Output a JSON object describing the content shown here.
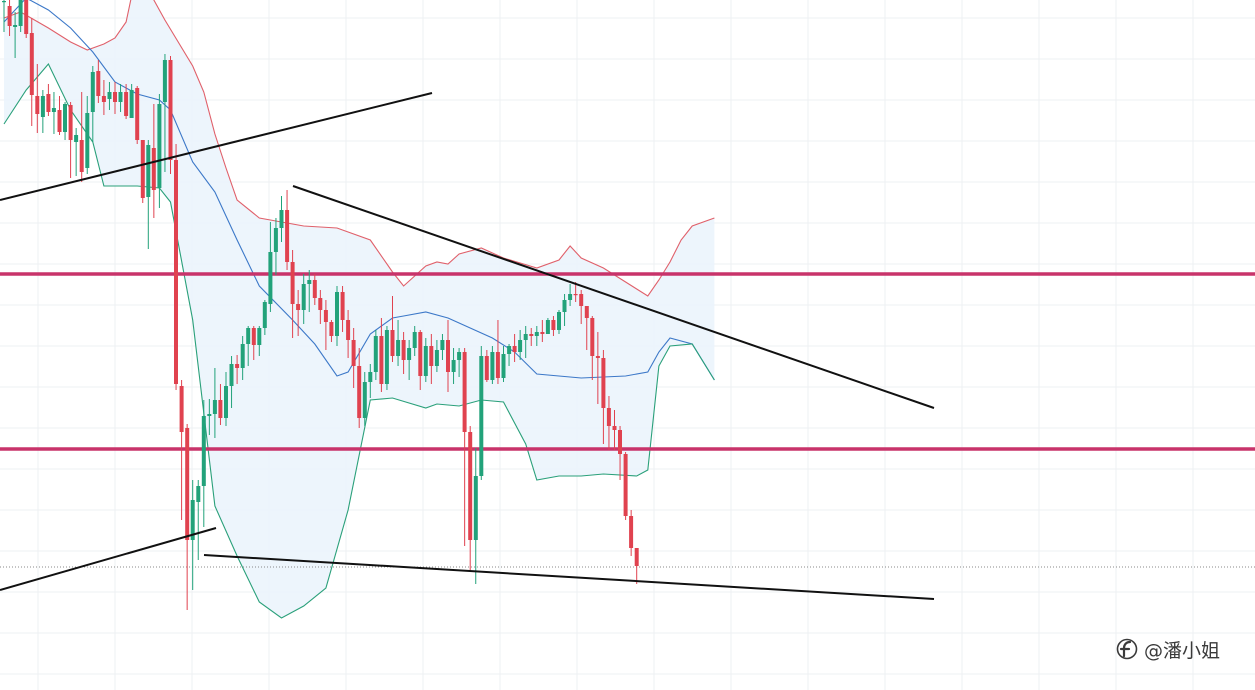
{
  "watermark": {
    "text": "@潘小姐"
  },
  "colors": {
    "background": "#ffffff",
    "grid": "#eef0f3",
    "bull": "#22a27a",
    "bear": "#e0424f",
    "band_fill": "#eaf3fb",
    "band_upper": "#e0606a",
    "band_middle": "#3c78c8",
    "band_lower": "#2aa07a",
    "level": "#c8336a",
    "trendline": "#111111",
    "current_price_line": "#888888"
  },
  "chart_data": {
    "type": "candlestick",
    "title": "",
    "xlabel": "",
    "ylabel": "",
    "grid": true,
    "ylim": [
      0,
      690
    ],
    "xlim": [
      0,
      160
    ],
    "indicators": [
      "bollinger-bands"
    ],
    "candles": [
      [
        0,
        2,
        -5,
        32,
        1
      ],
      [
        1,
        6,
        0,
        36,
        26
      ],
      [
        2,
        27,
        12,
        58,
        25
      ],
      [
        3,
        26,
        -10,
        32,
        -8
      ],
      [
        4,
        -4,
        -22,
        38,
        34
      ],
      [
        5,
        33,
        18,
        126,
        95
      ],
      [
        6,
        96,
        64,
        133,
        114
      ],
      [
        7,
        117,
        90,
        133,
        96
      ],
      [
        8,
        94,
        84,
        116,
        112
      ],
      [
        9,
        112,
        92,
        134,
        108
      ],
      [
        10,
        110,
        96,
        135,
        132
      ],
      [
        11,
        132,
        102,
        140,
        104
      ],
      [
        12,
        105,
        102,
        178,
        140
      ],
      [
        13,
        142,
        128,
        176,
        135
      ],
      [
        14,
        140,
        92,
        182,
        172
      ],
      [
        15,
        168,
        96,
        174,
        113
      ],
      [
        16,
        112,
        66,
        142,
        72
      ],
      [
        17,
        71,
        60,
        103,
        96
      ],
      [
        18,
        96,
        80,
        115,
        102
      ],
      [
        19,
        99,
        82,
        110,
        92
      ],
      [
        20,
        92,
        82,
        114,
        102
      ],
      [
        21,
        102,
        84,
        112,
        92
      ],
      [
        22,
        92,
        84,
        119,
        116
      ],
      [
        23,
        118,
        84,
        118,
        90
      ],
      [
        24,
        88,
        86,
        144,
        140
      ],
      [
        25,
        140,
        140,
        203,
        198
      ],
      [
        26,
        197,
        140,
        249,
        145
      ],
      [
        27,
        148,
        104,
        218,
        190
      ],
      [
        28,
        188,
        94,
        208,
        104
      ],
      [
        29,
        102,
        54,
        172,
        60
      ],
      [
        30,
        60,
        56,
        174,
        160
      ],
      [
        31,
        160,
        144,
        390,
        384
      ],
      [
        32,
        386,
        380,
        520,
        432
      ],
      [
        33,
        428,
        424,
        610,
        540
      ],
      [
        34,
        540,
        480,
        590,
        500
      ],
      [
        35,
        502,
        480,
        560,
        486
      ],
      [
        36,
        486,
        400,
        527,
        416
      ],
      [
        37,
        416,
        399,
        435,
        414
      ],
      [
        38,
        414,
        368,
        438,
        400
      ],
      [
        39,
        400,
        384,
        425,
        418
      ],
      [
        40,
        418,
        372,
        426,
        386
      ],
      [
        41,
        386,
        356,
        408,
        364
      ],
      [
        42,
        364,
        355,
        384,
        368
      ],
      [
        43,
        368,
        336,
        380,
        344
      ],
      [
        44,
        344,
        326,
        366,
        328
      ],
      [
        45,
        328,
        326,
        360,
        345
      ],
      [
        46,
        345,
        326,
        356,
        328
      ],
      [
        47,
        328,
        300,
        335,
        302
      ],
      [
        48,
        304,
        222,
        312,
        252
      ],
      [
        49,
        252,
        218,
        275,
        228
      ],
      [
        50,
        228,
        196,
        242,
        210
      ],
      [
        51,
        210,
        190,
        270,
        262
      ],
      [
        52,
        262,
        250,
        338,
        304
      ],
      [
        53,
        304,
        290,
        336,
        310
      ],
      [
        54,
        310,
        274,
        324,
        284
      ],
      [
        55,
        284,
        270,
        312,
        280
      ],
      [
        56,
        280,
        274,
        305,
        298
      ],
      [
        57,
        298,
        290,
        324,
        310
      ],
      [
        58,
        310,
        300,
        350,
        322
      ],
      [
        59,
        322,
        320,
        342,
        336
      ],
      [
        60,
        336,
        286,
        346,
        292
      ],
      [
        61,
        292,
        286,
        332,
        320
      ],
      [
        62,
        320,
        310,
        358,
        340
      ],
      [
        63,
        340,
        328,
        388,
        366
      ],
      [
        64,
        366,
        348,
        428,
        418
      ],
      [
        65,
        418,
        372,
        426,
        382
      ],
      [
        66,
        382,
        364,
        398,
        372
      ],
      [
        67,
        372,
        330,
        380,
        336
      ],
      [
        68,
        336,
        318,
        392,
        384
      ],
      [
        69,
        384,
        326,
        390,
        330
      ],
      [
        70,
        330,
        296,
        362,
        356
      ],
      [
        71,
        356,
        320,
        366,
        340
      ],
      [
        72,
        340,
        332,
        374,
        360
      ],
      [
        73,
        360,
        340,
        380,
        348
      ],
      [
        74,
        348,
        326,
        356,
        332
      ],
      [
        75,
        332,
        330,
        390,
        376
      ],
      [
        76,
        376,
        338,
        382,
        346
      ],
      [
        77,
        346,
        334,
        384,
        366
      ],
      [
        78,
        366,
        340,
        372,
        350
      ],
      [
        79,
        350,
        334,
        360,
        340
      ],
      [
        80,
        340,
        320,
        392,
        372
      ],
      [
        81,
        372,
        348,
        384,
        360
      ],
      [
        82,
        360,
        348,
        377,
        352
      ],
      [
        83,
        352,
        348,
        546,
        432
      ],
      [
        84,
        432,
        426,
        570,
        540
      ],
      [
        85,
        540,
        448,
        584,
        476
      ],
      [
        86,
        476,
        346,
        480,
        356
      ],
      [
        87,
        356,
        350,
        382,
        380
      ],
      [
        88,
        380,
        346,
        384,
        352
      ],
      [
        89,
        352,
        320,
        384,
        378
      ],
      [
        90,
        378,
        346,
        382,
        354
      ],
      [
        91,
        354,
        344,
        366,
        346
      ],
      [
        92,
        346,
        334,
        362,
        352
      ],
      [
        93,
        352,
        330,
        360,
        340
      ],
      [
        94,
        340,
        326,
        358,
        334
      ],
      [
        95,
        334,
        328,
        346,
        336
      ],
      [
        96,
        336,
        326,
        346,
        332
      ],
      [
        97,
        332,
        320,
        342,
        334
      ],
      [
        98,
        334,
        318,
        332,
        320
      ],
      [
        99,
        320,
        316,
        336,
        330
      ],
      [
        100,
        330,
        310,
        334,
        312
      ],
      [
        101,
        312,
        294,
        326,
        300
      ],
      [
        102,
        300,
        284,
        306,
        294
      ],
      [
        103,
        294,
        282,
        302,
        294
      ],
      [
        104,
        294,
        290,
        324,
        306
      ],
      [
        105,
        306,
        306,
        350,
        318
      ],
      [
        106,
        318,
        316,
        380,
        356
      ],
      [
        107,
        356,
        332,
        404,
        358
      ],
      [
        108,
        358,
        350,
        444,
        408
      ],
      [
        109,
        408,
        396,
        450,
        426
      ],
      [
        110,
        426,
        410,
        450,
        430
      ],
      [
        111,
        430,
        426,
        480,
        454
      ],
      [
        112,
        454,
        452,
        520,
        516
      ],
      [
        113,
        516,
        510,
        556,
        548
      ],
      [
        114,
        548,
        548,
        584,
        566
      ]
    ],
    "bollinger": {
      "upper": [
        [
          0,
          18
        ],
        [
          3,
          12
        ],
        [
          8,
          28
        ],
        [
          12,
          42
        ],
        [
          15,
          50
        ],
        [
          18,
          44
        ],
        [
          20,
          38
        ],
        [
          22,
          22
        ],
        [
          23,
          -4
        ],
        [
          25,
          -20
        ],
        [
          29,
          20
        ],
        [
          34,
          66
        ],
        [
          36,
          92
        ],
        [
          38,
          134
        ],
        [
          40,
          168
        ],
        [
          42,
          200
        ],
        [
          46,
          218
        ],
        [
          54,
          226
        ],
        [
          60,
          228
        ],
        [
          66,
          240
        ],
        [
          70,
          272
        ],
        [
          72,
          286
        ],
        [
          76,
          266
        ],
        [
          78,
          262
        ],
        [
          80,
          264
        ],
        [
          82,
          254
        ],
        [
          86,
          248
        ],
        [
          90,
          258
        ],
        [
          96,
          268
        ],
        [
          100,
          260
        ],
        [
          102,
          246
        ],
        [
          104,
          258
        ],
        [
          108,
          268
        ],
        [
          112,
          282
        ],
        [
          116,
          296
        ],
        [
          118,
          280
        ],
        [
          120,
          262
        ],
        [
          122,
          240
        ],
        [
          124,
          226
        ],
        [
          128,
          218
        ]
      ],
      "middle": [
        [
          0,
          22
        ],
        [
          4,
          -2
        ],
        [
          8,
          10
        ],
        [
          12,
          28
        ],
        [
          16,
          52
        ],
        [
          20,
          82
        ],
        [
          24,
          94
        ],
        [
          28,
          100
        ],
        [
          30,
          110
        ],
        [
          34,
          162
        ],
        [
          38,
          192
        ],
        [
          42,
          240
        ],
        [
          46,
          286
        ],
        [
          52,
          320
        ],
        [
          56,
          344
        ],
        [
          60,
          376
        ],
        [
          62,
          372
        ],
        [
          66,
          334
        ],
        [
          70,
          318
        ],
        [
          72,
          316
        ],
        [
          76,
          312
        ],
        [
          80,
          318
        ],
        [
          84,
          328
        ],
        [
          88,
          338
        ],
        [
          92,
          352
        ],
        [
          96,
          374
        ],
        [
          104,
          378
        ],
        [
          112,
          376
        ],
        [
          116,
          372
        ],
        [
          118,
          352
        ],
        [
          120,
          338
        ],
        [
          124,
          344
        ],
        [
          128,
          380
        ]
      ],
      "lower": [
        [
          0,
          124
        ],
        [
          4,
          90
        ],
        [
          8,
          64
        ],
        [
          12,
          110
        ],
        [
          16,
          142
        ],
        [
          18,
          186
        ],
        [
          24,
          186
        ],
        [
          28,
          188
        ],
        [
          30,
          202
        ],
        [
          34,
          320
        ],
        [
          38,
          506
        ],
        [
          42,
          556
        ],
        [
          46,
          602
        ],
        [
          50,
          618
        ],
        [
          54,
          606
        ],
        [
          58,
          588
        ],
        [
          62,
          510
        ],
        [
          66,
          400
        ],
        [
          70,
          398
        ],
        [
          76,
          408
        ],
        [
          78,
          404
        ],
        [
          82,
          406
        ],
        [
          86,
          400
        ],
        [
          90,
          402
        ],
        [
          94,
          444
        ],
        [
          96,
          480
        ],
        [
          100,
          476
        ],
        [
          104,
          476
        ],
        [
          108,
          474
        ],
        [
          114,
          476
        ],
        [
          116,
          470
        ],
        [
          118,
          366
        ],
        [
          120,
          346
        ],
        [
          124,
          344
        ],
        [
          128,
          380
        ]
      ]
    },
    "horizontal_levels": [
      274,
      449
    ],
    "current_price": 567,
    "trendlines": [
      {
        "from": [
          0,
          200
        ],
        "to": [
          432,
          93
        ]
      },
      {
        "from": [
          0,
          590
        ],
        "to": [
          216,
          528
        ]
      },
      {
        "from": [
          293,
          186
        ],
        "to": [
          934,
          408
        ]
      },
      {
        "from": [
          204,
          555
        ],
        "to": [
          934,
          599
        ]
      }
    ]
  }
}
